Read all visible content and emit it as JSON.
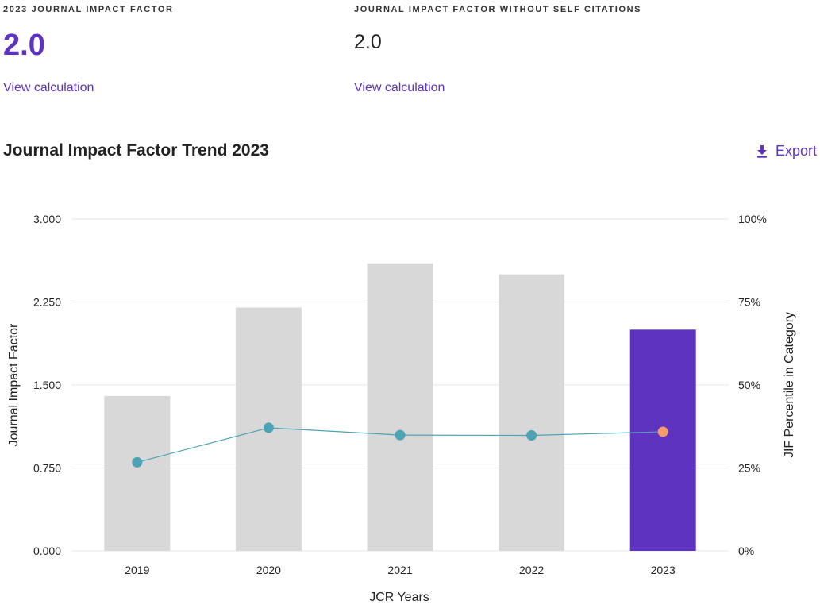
{
  "metrics": {
    "jif": {
      "label": "2023 JOURNAL IMPACT FACTOR",
      "value": "2.0",
      "link": "View calculation"
    },
    "jif_no_self": {
      "label": "JOURNAL IMPACT FACTOR WITHOUT SELF CITATIONS",
      "value": "2.0",
      "link": "View calculation"
    }
  },
  "trend": {
    "title": "Journal Impact Factor Trend 2023",
    "export_label": "Export",
    "export_icon": "download-icon"
  },
  "colors": {
    "accent": "#5e33bf",
    "bar": "#d8d8d8",
    "line": "#4ba3b3",
    "highlight_point": "#f59a6a",
    "grid": "#e6e6e6"
  },
  "chart_data": {
    "type": "bar",
    "categories": [
      "2019",
      "2020",
      "2021",
      "2022",
      "2023"
    ],
    "series": [
      {
        "name": "Journal Impact Factor",
        "axis": "left",
        "type": "bar",
        "values": [
          1.4,
          2.2,
          2.6,
          2.5,
          2.0
        ]
      },
      {
        "name": "JIF Percentile in Category",
        "axis": "right",
        "type": "line",
        "values": [
          26.7,
          37.1,
          34.9,
          34.8,
          35.9
        ]
      }
    ],
    "highlight_category": "2023",
    "xlabel": "JCR Years",
    "ylabel": "Journal Impact Factor",
    "y2label": "JIF Percentile in Category",
    "ylim": [
      0,
      3
    ],
    "y2lim": [
      0,
      100
    ],
    "yticks": [
      "0.000",
      "0.750",
      "1.500",
      "2.250",
      "3.000"
    ],
    "y2ticks": [
      "0%",
      "25%",
      "50%",
      "75%",
      "100%"
    ],
    "grid": true
  }
}
